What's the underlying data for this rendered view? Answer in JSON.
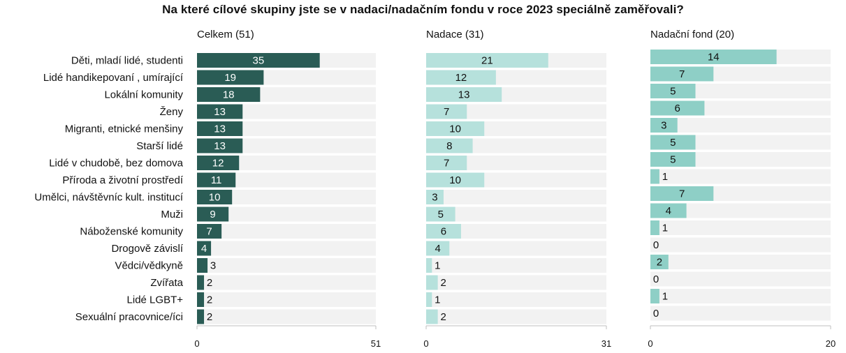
{
  "title": "Na které cílové skupiny jste se v nadaci/nadačním fondu v roce 2023 speciálně zaměřovali?",
  "colors": {
    "celkem": "#2a5c55",
    "nadace": "#b6e1dc",
    "fond": "#8ecfc6",
    "track": "#f2f2f2"
  },
  "chart_data": {
    "type": "bar",
    "orientation": "horizontal",
    "title": "Na které cílové skupiny jste se v nadaci/nadačním fondu v roce 2023 speciálně zaměřovali?",
    "categories": [
      "Děti, mladí lidé, studenti",
      "Lidé handikepovaní , umírající",
      "Lokální komunity",
      "Ženy",
      "Migranti, etnické menšiny",
      "Starší lidé",
      "Lidé v chudobě, bez domova",
      "Příroda a životní prostředí",
      "Umělci,  návštěvníc kult. institucí",
      "Muži",
      "Náboženské komunity",
      "Drogově závislí",
      "Vědci/vědkyně",
      "Zvířata",
      "Lidé LGBT+",
      "Sexuální pracovnice/íci"
    ],
    "series": [
      {
        "name": "Celkem (51)",
        "max": 51,
        "values": [
          35,
          19,
          18,
          13,
          13,
          13,
          12,
          11,
          10,
          9,
          7,
          4,
          3,
          2,
          2,
          2
        ]
      },
      {
        "name": "Nadace (31)",
        "max": 31,
        "values": [
          21,
          12,
          13,
          7,
          10,
          8,
          7,
          10,
          3,
          5,
          6,
          4,
          1,
          2,
          1,
          2
        ]
      },
      {
        "name": "Nadační fond (20)",
        "max": 20,
        "values": [
          14,
          7,
          5,
          6,
          3,
          5,
          5,
          1,
          7,
          4,
          1,
          0,
          2,
          0,
          1,
          0
        ]
      }
    ],
    "axis_ticks": [
      [
        "0",
        "51"
      ],
      [
        "0",
        "31"
      ],
      [
        "0",
        "20"
      ]
    ],
    "grid": false,
    "legend": "none"
  }
}
